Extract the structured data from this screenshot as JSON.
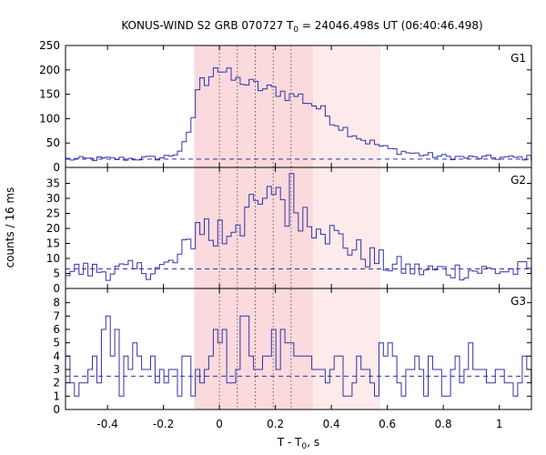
{
  "chart_data": {
    "type": "line",
    "title_main": "KONUS-WIND S2 GRB 070727 T",
    "title_sub": "0",
    "title_rest": " = 24046.498s UT (06:40:46.498)",
    "xlabel_main": "T - T",
    "xlabel_sub": "0",
    "xlabel_rest": ", s",
    "ylabel": "counts / 16 ms",
    "x_range": [
      -0.55,
      1.115
    ],
    "x_ticks": [
      -0.4,
      -0.2,
      0,
      0.2,
      0.4,
      0.6,
      0.8,
      1
    ],
    "x_tick_labels": [
      "-0.4",
      "-0.2",
      "0",
      "0.2",
      "0.4",
      "0.6",
      "0.8",
      "1"
    ],
    "time_bin_s": 0.016,
    "shaded_intervals": [
      {
        "from": -0.09,
        "to": 0.335,
        "color": "#fadadd"
      },
      {
        "from": 0.335,
        "to": 0.575,
        "color": "#fdeaea"
      }
    ],
    "vertical_dotted_lines": [
      0,
      0.064,
      0.128,
      0.192,
      0.256
    ],
    "colors": {
      "series": "#3232a8",
      "background_line": "#3232a8",
      "axes": "#000000"
    },
    "panels": [
      {
        "name": "G1",
        "ylim": [
          0,
          250
        ],
        "y_ticks": [
          0,
          50,
          100,
          150,
          200,
          250
        ],
        "background_level": 17,
        "x": [
          -0.55,
          -0.3,
          -0.2,
          -0.15,
          -0.12,
          -0.1,
          -0.09,
          -0.08,
          -0.06,
          -0.04,
          -0.02,
          0,
          0.02,
          0.04,
          0.06,
          0.08,
          0.1,
          0.12,
          0.14,
          0.16,
          0.18,
          0.2,
          0.22,
          0.24,
          0.26,
          0.28,
          0.3,
          0.32,
          0.34,
          0.36,
          0.38,
          0.4,
          0.42,
          0.44,
          0.46,
          0.48,
          0.5,
          0.52,
          0.55,
          0.6,
          0.7,
          0.8,
          0.9,
          1,
          1.115
        ],
        "y": [
          17,
          18,
          20,
          30,
          50,
          80,
          120,
          160,
          175,
          180,
          215,
          200,
          195,
          185,
          175,
          180,
          170,
          168,
          165,
          160,
          158,
          160,
          155,
          150,
          145,
          150,
          140,
          135,
          128,
          120,
          110,
          100,
          90,
          82,
          75,
          70,
          62,
          55,
          50,
          38,
          28,
          22,
          20,
          20,
          20
        ]
      },
      {
        "name": "G2",
        "ylim": [
          0,
          40
        ],
        "y_ticks": [
          0,
          5,
          10,
          15,
          20,
          25,
          30,
          35
        ],
        "background_level": 6.5,
        "x": [
          -0.55,
          -0.3,
          -0.2,
          -0.15,
          -0.12,
          -0.1,
          -0.08,
          -0.05,
          -0.02,
          0,
          0.02,
          0.04,
          0.06,
          0.08,
          0.1,
          0.12,
          0.14,
          0.16,
          0.18,
          0.2,
          0.22,
          0.24,
          0.26,
          0.28,
          0.3,
          0.32,
          0.34,
          0.36,
          0.38,
          0.4,
          0.45,
          0.5,
          0.55,
          0.6,
          0.7,
          0.8,
          0.9,
          1,
          1.115
        ],
        "y": [
          6,
          6,
          7,
          9,
          13,
          16,
          21,
          22,
          14,
          21,
          16,
          20,
          24,
          22,
          27,
          24,
          29,
          25,
          30,
          36,
          32,
          25,
          33,
          25,
          27,
          22,
          22,
          26,
          20,
          18,
          15,
          12,
          10,
          8,
          6,
          6,
          6,
          6,
          6
        ]
      },
      {
        "name": "G3",
        "ylim": [
          0,
          9
        ],
        "y_ticks": [
          0,
          1,
          2,
          3,
          4,
          5,
          6,
          7,
          8
        ],
        "background_level": 2.5,
        "x": [
          -0.55,
          -0.45,
          -0.4,
          -0.35,
          -0.3,
          -0.2,
          -0.1,
          -0.05,
          0,
          0.05,
          0.1,
          0.15,
          0.2,
          0.25,
          0.3,
          0.35,
          0.4,
          0.45,
          0.5,
          0.55,
          0.6,
          0.65,
          0.7,
          0.8,
          0.9,
          1,
          1.115
        ],
        "y": [
          3,
          2,
          8,
          2,
          3,
          2,
          3,
          2,
          5,
          3,
          6,
          2,
          5,
          4,
          6,
          3,
          4,
          2,
          3,
          2,
          5,
          2,
          3,
          2,
          3,
          2,
          3
        ]
      }
    ]
  }
}
